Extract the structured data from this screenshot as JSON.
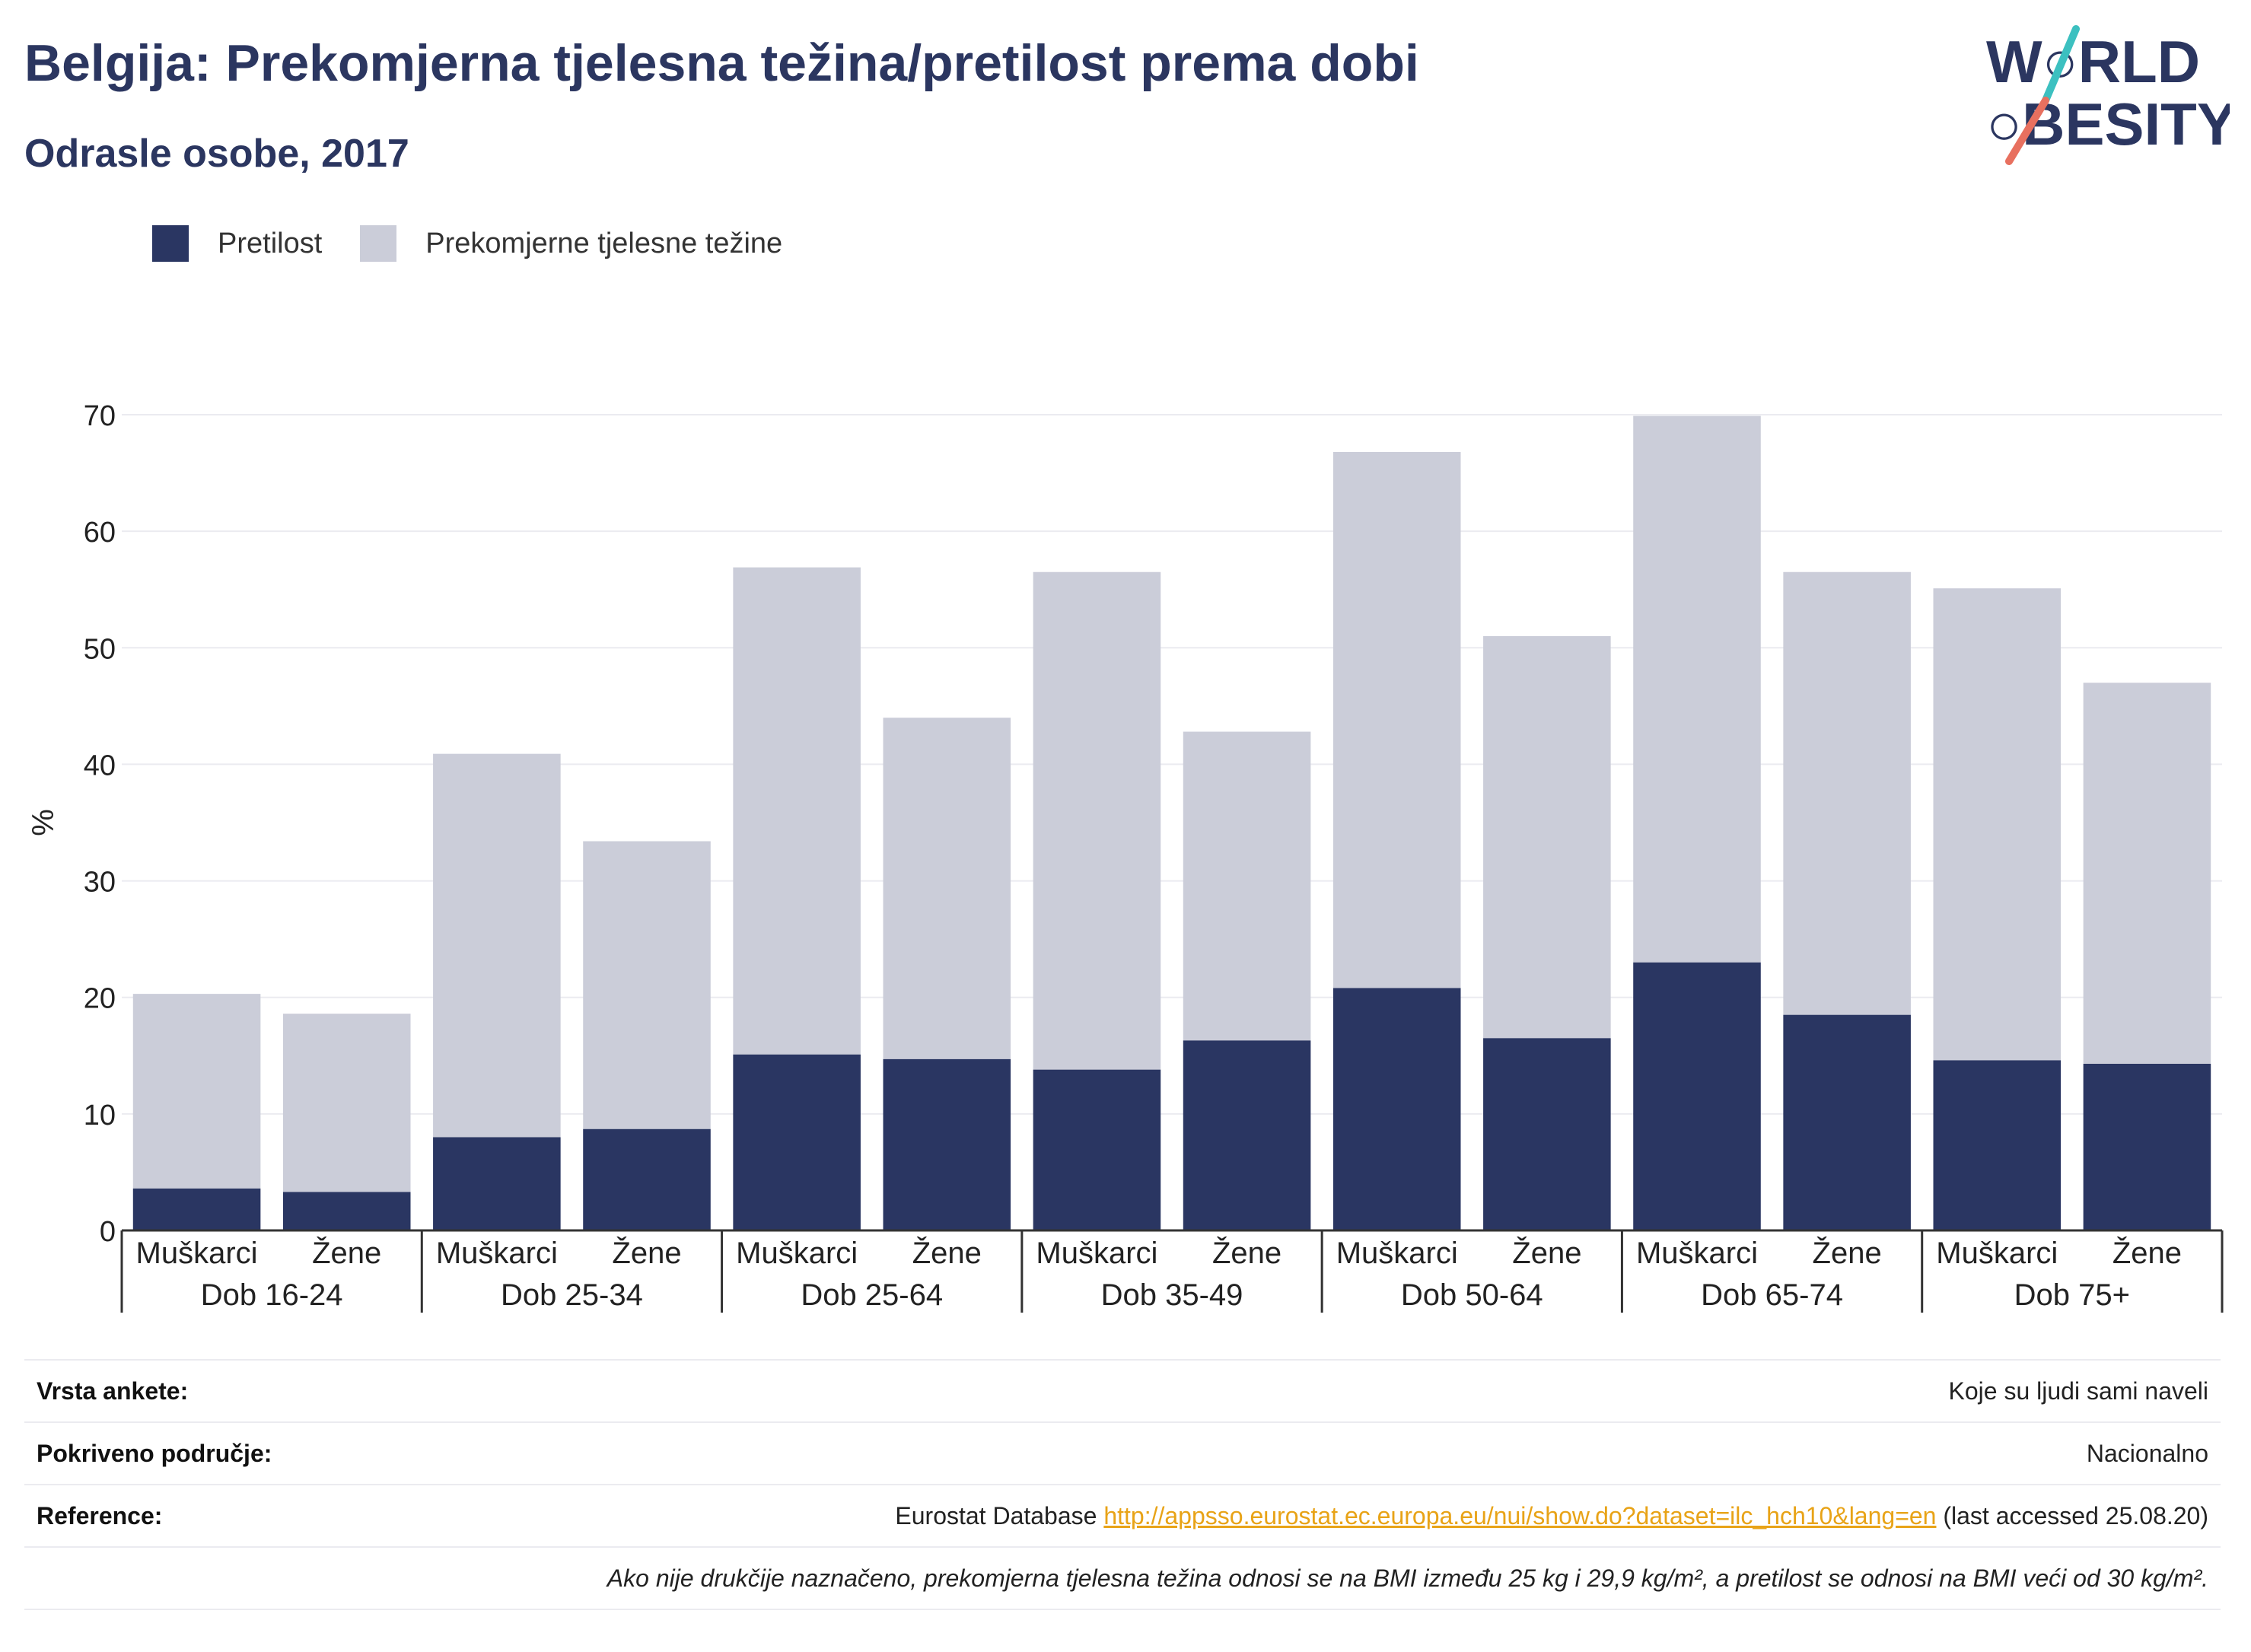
{
  "header": {
    "title": "Belgija: Prekomjerna tjelesna težina/pretilost prema dobi",
    "subtitle": "Odrasle osobe, 2017"
  },
  "logo": {
    "line1": "W",
    "line1b": "RLD",
    "line2": "BESITY",
    "icon": "world-obesity-logo"
  },
  "colors": {
    "obesity": "#2a3662",
    "overweight": "#cbcdd9",
    "accent": "#e8a317",
    "title": "#2b3660"
  },
  "chart_data": {
    "type": "bar",
    "stacked": true,
    "ylabel": "%",
    "ylim": [
      0,
      70
    ],
    "yticks": [
      0,
      10,
      20,
      30,
      40,
      50,
      60,
      70
    ],
    "grid": true,
    "legend_position": "top-left",
    "legend": [
      "Pretilost",
      "Prekomjerne tjelesne težine"
    ],
    "groups": [
      "Dob 16-24",
      "Dob 25-34",
      "Dob 25-64",
      "Dob 35-49",
      "Dob 50-64",
      "Dob 65-74",
      "Dob 75+"
    ],
    "categories": [
      "Muškarci",
      "Žene",
      "Muškarci",
      "Žene",
      "Muškarci",
      "Žene",
      "Muškarci",
      "Žene",
      "Muškarci",
      "Žene",
      "Muškarci",
      "Žene",
      "Muškarci",
      "Žene"
    ],
    "series": [
      {
        "name": "Pretilost",
        "values": [
          3.6,
          3.3,
          8.0,
          8.7,
          15.1,
          14.7,
          13.8,
          16.3,
          20.8,
          16.5,
          23.0,
          18.5,
          14.6,
          14.3
        ]
      },
      {
        "name": "Prekomjerne tjelesne težine",
        "values": [
          16.7,
          15.3,
          32.9,
          24.7,
          41.8,
          29.3,
          42.7,
          26.5,
          46.0,
          34.5,
          46.9,
          38.0,
          40.5,
          32.7
        ]
      }
    ]
  },
  "info": {
    "survey_label": "Vrsta ankete:",
    "survey_value": "Koje su ljudi sami naveli",
    "coverage_label": "Pokriveno područje:",
    "coverage_value": "Nacionalno",
    "reference_label": "Reference:",
    "reference_prefix": "Eurostat Database",
    "reference_link": "http://appsso.eurostat.ec.europa.eu/nui/show.do?dataset=ilc_hch10&lang=en",
    "reference_suffix": "(last accessed 25.08.20)",
    "note": "Ako nije drukčije naznačeno, prekomjerna tjelesna težina odnosi se na BMI između 25 kg i 29,9 kg/m², a pretilost se odnosi na BMI veći od 30 kg/m²."
  }
}
